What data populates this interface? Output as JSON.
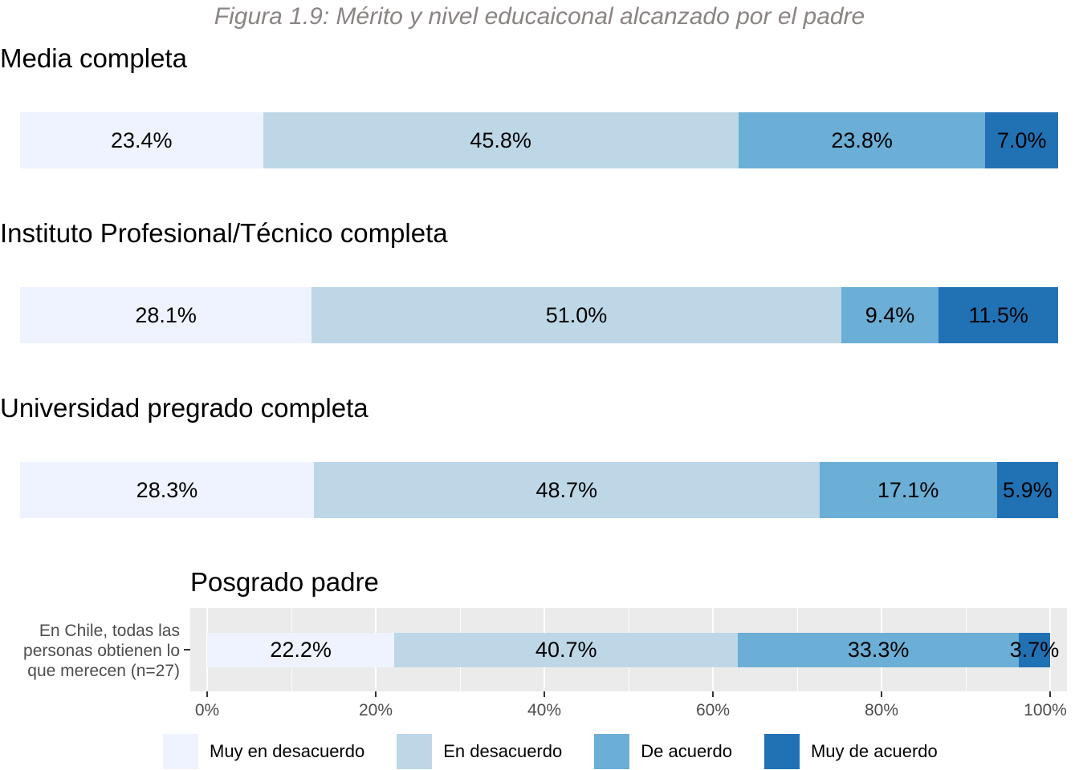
{
  "chart_data": {
    "type": "bar",
    "orientation": "horizontal-stacked-100",
    "title": "Figura 1.9: Mérito y nivel educaiconal alcanzado por el padre",
    "colors": [
      "#eff3ff",
      "#bdd7e7",
      "#6baed6",
      "#2171b5"
    ],
    "legend": {
      "placement": "bottom",
      "entries": [
        "Muy en desacuerdo",
        "En desacuerdo",
        "De acuerdo",
        "Muy de acuerdo"
      ]
    },
    "y_category": "En Chile, todas las personas obtienen lo que merecen (n=27)",
    "x_ticks": [
      "0%",
      "20%",
      "40%",
      "60%",
      "80%",
      "100%"
    ],
    "xlim": [
      0,
      100
    ],
    "facets": [
      {
        "title": "Media completa",
        "values": [
          23.4,
          45.8,
          23.8,
          7.0
        ],
        "labels": [
          "23.4%",
          "45.8%",
          "23.8%",
          "7.0%"
        ]
      },
      {
        "title": "Instituto Profesional/Técnico completa",
        "values": [
          28.1,
          51.0,
          9.4,
          11.5
        ],
        "labels": [
          "28.1%",
          "51.0%",
          "9.4%",
          "11.5%"
        ]
      },
      {
        "title": "Universidad pregrado completa",
        "values": [
          28.3,
          48.7,
          17.1,
          5.9
        ],
        "labels": [
          "28.3%",
          "48.7%",
          "17.1%",
          "5.9%"
        ]
      },
      {
        "title": "Posgrado padre",
        "values": [
          22.2,
          40.7,
          33.3,
          3.7
        ],
        "labels": [
          "22.2%",
          "40.7%",
          "33.3%",
          "3.7%"
        ]
      }
    ]
  }
}
